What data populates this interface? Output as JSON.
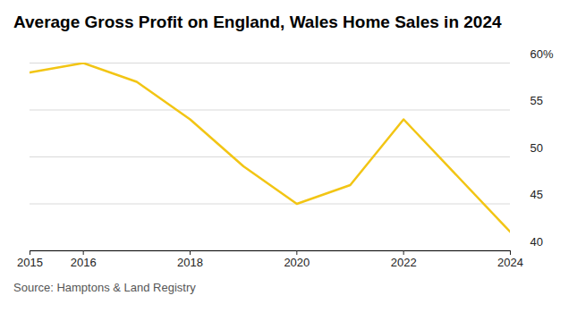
{
  "chart_data": {
    "type": "line",
    "title": "Average Gross Profit on England, Wales Home Sales in 2024",
    "source": "Source: Hamptons & Land Registry",
    "x": [
      2015,
      2016,
      2017,
      2018,
      2019,
      2020,
      2021,
      2022,
      2024
    ],
    "values": [
      59,
      60,
      58,
      54,
      49,
      45,
      47,
      54,
      42
    ],
    "color": "#f2c514",
    "xlim": [
      2015,
      2024
    ],
    "xticks": [
      2015,
      2016,
      2018,
      2020,
      2022,
      2024
    ],
    "ylim": [
      40,
      60
    ],
    "yticks": [
      40,
      45,
      50,
      55,
      {
        "value": 60,
        "label": "60%"
      }
    ],
    "grid": true
  }
}
